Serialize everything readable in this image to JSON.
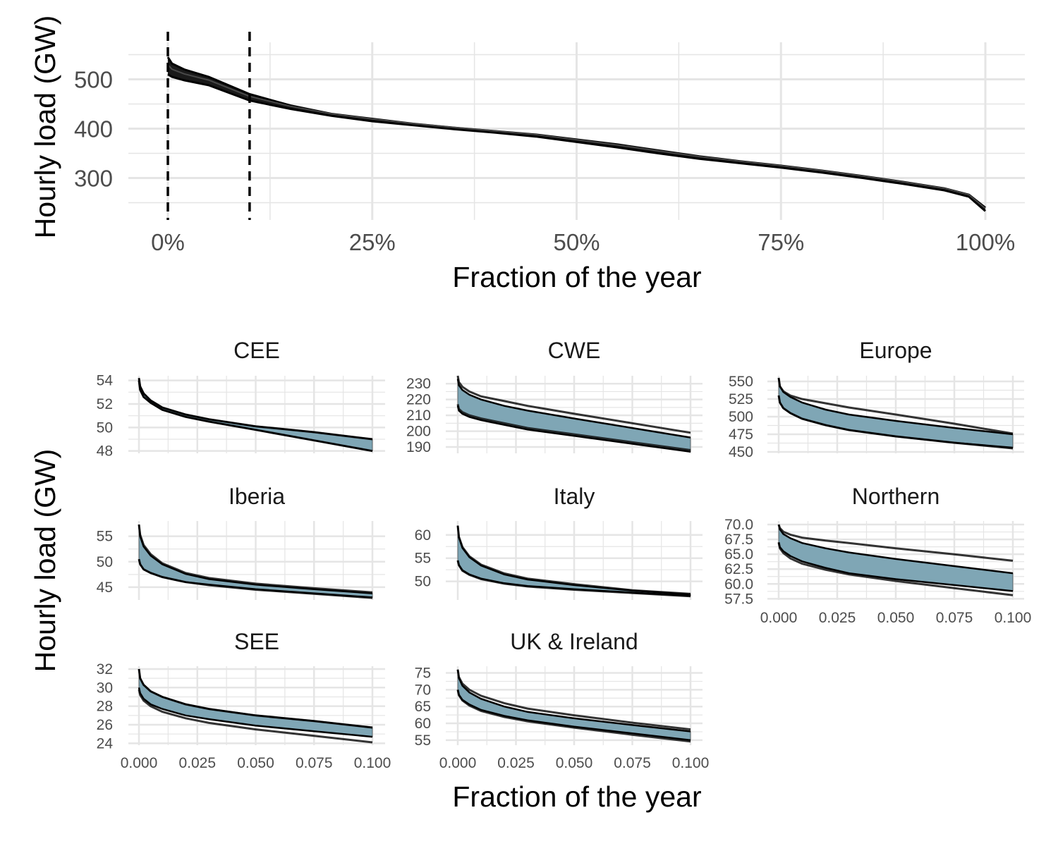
{
  "figure": {
    "top_xlabel": "Fraction of the year",
    "top_ylabel": "Hourly load (GW)",
    "bottom_xlabel": "Fraction of the year",
    "bottom_ylabel": "Hourly load (GW)"
  },
  "colors": {
    "grid": "#e5e5e5",
    "curve": "#000000",
    "band_fill": "#7fa6b5",
    "tick_text": "#4d4d4d",
    "dashed_marker": "#000000"
  },
  "chart_data": [
    {
      "type": "line",
      "panel": "all-europe",
      "xlabel": "Fraction of the year",
      "ylabel": "Hourly load (GW)",
      "xlim": [
        0,
        1
      ],
      "ylim": [
        215,
        575
      ],
      "xticks": [
        0,
        0.25,
        0.5,
        0.75,
        1.0
      ],
      "xtick_labels": [
        "0%",
        "25%",
        "50%",
        "75%",
        "100%"
      ],
      "yticks": [
        300,
        400,
        500
      ],
      "ytick_labels": [
        "300",
        "400",
        "500"
      ],
      "vlines_dashed": [
        0,
        0.1
      ],
      "grid": true,
      "series_band": {
        "x": [
          0,
          0.005,
          0.02,
          0.05,
          0.1,
          0.15,
          0.2,
          0.25,
          0.3,
          0.35,
          0.4,
          0.45,
          0.5,
          0.55,
          0.6,
          0.65,
          0.7,
          0.75,
          0.8,
          0.85,
          0.9,
          0.95,
          0.98,
          1.0
        ],
        "upper": [
          545,
          532,
          520,
          505,
          470,
          447,
          430,
          420,
          410,
          402,
          395,
          388,
          378,
          368,
          356,
          344,
          334,
          325,
          315,
          304,
          292,
          279,
          266,
          240
        ],
        "lower": [
          510,
          505,
          498,
          488,
          457,
          440,
          426,
          415,
          407,
          399,
          392,
          384,
          373,
          362,
          350,
          339,
          330,
          321,
          311,
          300,
          288,
          275,
          262,
          233
        ]
      }
    },
    {
      "type": "area",
      "panel": "small-multiples",
      "xlabel": "Fraction of the year",
      "ylabel": "Hourly load (GW)",
      "xlim": [
        0,
        0.1
      ],
      "xticks": [
        0,
        0.025,
        0.05,
        0.075,
        0.1
      ],
      "xtick_labels": [
        "0.000",
        "0.025",
        "0.050",
        "0.075",
        "0.100"
      ],
      "grid": true,
      "facets": [
        {
          "name": "CEE",
          "ylim": [
            47.8,
            54.4
          ],
          "yticks": [
            48,
            50,
            52,
            54
          ],
          "ytick_labels": [
            "48",
            "50",
            "52",
            "54"
          ],
          "x": [
            0,
            0.0005,
            0.002,
            0.005,
            0.01,
            0.02,
            0.03,
            0.05,
            0.075,
            0.1
          ],
          "band_upper": [
            54.2,
            53.5,
            52.9,
            52.3,
            51.7,
            51.1,
            50.7,
            50.1,
            49.6,
            49.0
          ],
          "band_lower": [
            54.0,
            53.2,
            52.6,
            52.1,
            51.5,
            50.9,
            50.5,
            49.8,
            48.9,
            48.0
          ],
          "outer_lines": [
            [
              54.2,
              53.5,
              52.9,
              52.3,
              51.7,
              51.1,
              50.7,
              50.1,
              49.6,
              49.0
            ],
            [
              54.0,
              53.2,
              52.6,
              52.1,
              51.5,
              50.9,
              50.5,
              49.8,
              48.9,
              48.0
            ]
          ]
        },
        {
          "name": "CWE",
          "ylim": [
            186,
            235
          ],
          "yticks": [
            190,
            200,
            210,
            220,
            230
          ],
          "ytick_labels": [
            "190",
            "200",
            "210",
            "220",
            "230"
          ],
          "x": [
            0,
            0.0005,
            0.002,
            0.005,
            0.01,
            0.02,
            0.03,
            0.05,
            0.075,
            0.1
          ],
          "band_upper": [
            233,
            229,
            226,
            223,
            220,
            216,
            213,
            208,
            202,
            196
          ],
          "band_lower": [
            216,
            213,
            211,
            209,
            207,
            204,
            201,
            197,
            192,
            187
          ],
          "outer_lines": [
            [
              235,
              231,
              228,
              225,
              222,
              219,
              216,
              211,
              205,
              199
            ],
            [
              217,
              214,
              212,
              210,
              208,
              205,
              202,
              198,
              193,
              188
            ]
          ]
        },
        {
          "name": "Europe",
          "ylim": [
            448,
            558
          ],
          "yticks": [
            450,
            475,
            500,
            525,
            550
          ],
          "ytick_labels": [
            "450",
            "475",
            "500",
            "525",
            "550"
          ],
          "x": [
            0,
            0.0005,
            0.002,
            0.005,
            0.01,
            0.02,
            0.03,
            0.05,
            0.075,
            0.1
          ],
          "band_upper": [
            555,
            543,
            535,
            528,
            520,
            510,
            503,
            494,
            484,
            475
          ],
          "band_lower": [
            530,
            520,
            512,
            505,
            497,
            488,
            481,
            472,
            463,
            456
          ],
          "outer_lines": [
            [
              555,
              543,
              536,
              530,
              525,
              519,
              513,
              503,
              490,
              476
            ],
            [
              530,
              520,
              512,
              505,
              497,
              488,
              481,
              472,
              463,
              455
            ]
          ]
        },
        {
          "name": "Iberia",
          "ylim": [
            42.5,
            58
          ],
          "yticks": [
            45,
            50,
            55
          ],
          "ytick_labels": [
            "45",
            "50",
            "55"
          ],
          "x": [
            0,
            0.0005,
            0.002,
            0.005,
            0.01,
            0.02,
            0.03,
            0.05,
            0.075,
            0.1
          ],
          "band_upper": [
            57.3,
            55,
            53,
            51.2,
            49.5,
            47.6,
            46.6,
            45.5,
            44.6,
            43.8
          ],
          "band_lower": [
            50.5,
            49.5,
            48.5,
            47.8,
            47.0,
            46.0,
            45.5,
            44.6,
            43.8,
            43.0
          ],
          "outer_lines": [
            [
              57.3,
              55.3,
              53.3,
              51.5,
              49.7,
              47.8,
              46.8,
              45.7,
              44.8,
              44.0
            ],
            [
              50.5,
              49.5,
              48.5,
              47.8,
              47.0,
              46.0,
              45.4,
              44.5,
              43.7,
              42.9
            ]
          ]
        },
        {
          "name": "Italy",
          "ylim": [
            46,
            63
          ],
          "yticks": [
            50,
            55,
            60
          ],
          "ytick_labels": [
            "50",
            "55",
            "60"
          ],
          "x": [
            0,
            0.0005,
            0.002,
            0.005,
            0.01,
            0.02,
            0.03,
            0.05,
            0.075,
            0.1
          ],
          "band_upper": [
            62,
            59.5,
            57.2,
            55.2,
            53.4,
            51.5,
            50.4,
            49.2,
            48.0,
            47.2
          ],
          "band_lower": [
            54.5,
            53.5,
            52.4,
            51.5,
            50.6,
            49.6,
            49.0,
            48.3,
            47.6,
            46.9
          ],
          "outer_lines": [
            [
              62,
              59.6,
              57.4,
              55.4,
              53.6,
              51.7,
              50.6,
              49.4,
              48.1,
              47.3
            ],
            [
              54.5,
              53.5,
              52.3,
              51.4,
              50.5,
              49.5,
              48.9,
              48.2,
              47.5,
              46.8
            ]
          ]
        },
        {
          "name": "Northern",
          "ylim": [
            57.3,
            70.6
          ],
          "yticks": [
            57.5,
            60.0,
            62.5,
            65.0,
            67.5,
            70.0
          ],
          "ytick_labels": [
            "57.5",
            "60.0",
            "62.5",
            "65.0",
            "67.5",
            "70.0"
          ],
          "x": [
            0,
            0.0005,
            0.002,
            0.005,
            0.01,
            0.02,
            0.03,
            0.05,
            0.075,
            0.1
          ],
          "band_upper": [
            70.0,
            69.2,
            68.4,
            67.7,
            66.9,
            66.0,
            65.3,
            64.2,
            63.0,
            61.8
          ],
          "band_lower": [
            67.0,
            66.2,
            65.5,
            64.7,
            63.8,
            62.7,
            61.8,
            60.8,
            59.8,
            58.8
          ],
          "outer_lines": [
            [
              70.0,
              69.4,
              68.8,
              68.3,
              67.8,
              67.3,
              66.9,
              66.0,
              65.0,
              63.9
            ],
            [
              67.0,
              66.0,
              65.2,
              64.3,
              63.4,
              62.4,
              61.6,
              60.5,
              59.3,
              58.1
            ]
          ]
        },
        {
          "name": "SEE",
          "ylim": [
            23.8,
            32.3
          ],
          "yticks": [
            24,
            26,
            28,
            30,
            32
          ],
          "ytick_labels": [
            "24",
            "26",
            "28",
            "30",
            "32"
          ],
          "x": [
            0,
            0.0005,
            0.002,
            0.005,
            0.01,
            0.02,
            0.03,
            0.05,
            0.075,
            0.1
          ],
          "band_upper": [
            32.0,
            31.0,
            30.3,
            29.6,
            29.0,
            28.2,
            27.7,
            27.0,
            26.4,
            25.7
          ],
          "band_lower": [
            30.0,
            29.4,
            28.8,
            28.2,
            27.7,
            27.0,
            26.6,
            25.9,
            25.3,
            24.7
          ],
          "outer_lines": [
            [
              32.0,
              31.0,
              30.3,
              29.6,
              29.0,
              28.2,
              27.7,
              27.0,
              26.4,
              25.7
            ],
            [
              29.8,
              29.2,
              28.6,
              28.0,
              27.4,
              26.7,
              26.2,
              25.5,
              24.8,
              24.1
            ]
          ]
        },
        {
          "name": "UK & Ireland",
          "ylim": [
            53.5,
            77
          ],
          "yticks": [
            55,
            60,
            65,
            70,
            75
          ],
          "ytick_labels": [
            "55",
            "60",
            "65",
            "70",
            "75"
          ],
          "x": [
            0,
            0.0005,
            0.002,
            0.005,
            0.01,
            0.02,
            0.03,
            0.05,
            0.075,
            0.1
          ],
          "band_upper": [
            76,
            73.5,
            71.2,
            69.2,
            67.3,
            65.0,
            63.4,
            61.5,
            59.5,
            57.6
          ],
          "band_lower": [
            70,
            68.5,
            67.0,
            65.6,
            64.0,
            62.2,
            60.9,
            59.0,
            57.0,
            55.0
          ],
          "outer_lines": [
            [
              76,
              73.8,
              71.8,
              70.0,
              68.2,
              66.0,
              64.4,
              62.4,
              60.2,
              58.2
            ],
            [
              70,
              68.4,
              66.8,
              65.3,
              63.7,
              61.9,
              60.6,
              58.7,
              56.6,
              54.6
            ]
          ]
        }
      ]
    }
  ]
}
